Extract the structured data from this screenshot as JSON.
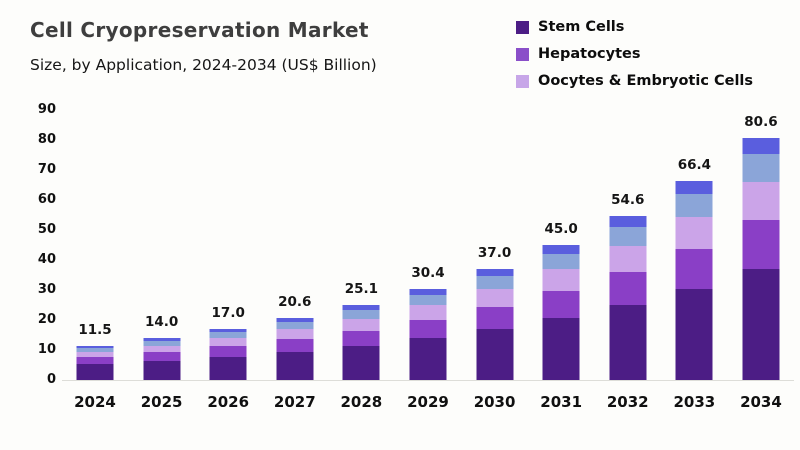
{
  "header": {
    "title": "Cell Cryopreservation Market",
    "subtitle": "Size, by Application, 2024-2034 (US$ Billion)"
  },
  "legend": {
    "items": [
      {
        "label": "Stem Cells",
        "color": "#4c1d85"
      },
      {
        "label": "Hepatocytes",
        "color": "#8a4fc9"
      },
      {
        "label": "Oocytes & Embryotic Cells",
        "color": "#c7a6e8"
      }
    ]
  },
  "chart_data": {
    "type": "stacked-bar",
    "title": "Cell Cryopreservation Market",
    "subtitle": "Size, by Application, 2024-2034 (US$ Billion)",
    "unit": "US$ Billion",
    "categories": [
      "2024",
      "2025",
      "2026",
      "2027",
      "2028",
      "2029",
      "2030",
      "2031",
      "2032",
      "2033",
      "2034"
    ],
    "totals_display": [
      "11.5",
      "14.0",
      "17.0",
      "20.6",
      "25.1",
      "30.4",
      "37.0",
      "45.0",
      "54.6",
      "66.4",
      "80.6"
    ],
    "totals": [
      11.5,
      14.0,
      17.0,
      20.6,
      25.1,
      30.4,
      37.0,
      45.0,
      54.6,
      66.4,
      80.6
    ],
    "series": [
      {
        "label": "Stem Cells",
        "color": "#4c1d85",
        "values": [
          5.3,
          6.4,
          7.8,
          9.5,
          11.5,
          14.0,
          17.0,
          20.7,
          25.1,
          30.5,
          37.1
        ]
      },
      {
        "label": "Hepatocytes",
        "color": "#8a3fc6",
        "values": [
          2.3,
          2.8,
          3.4,
          4.1,
          5.0,
          6.1,
          7.4,
          9.0,
          10.9,
          13.3,
          16.1
        ]
      },
      {
        "label": "Oocytes & Embryotic Cells",
        "color": "#cba4e8",
        "values": [
          1.8,
          2.2,
          2.7,
          3.3,
          4.0,
          4.9,
          5.9,
          7.2,
          8.7,
          10.6,
          12.9
        ]
      },
      {
        "label": null,
        "color": "#8ba5d8",
        "values": [
          1.3,
          1.6,
          2.0,
          2.4,
          2.9,
          3.5,
          4.3,
          5.2,
          6.3,
          7.6,
          9.3
        ]
      },
      {
        "label": null,
        "color": "#5a5ede",
        "values": [
          0.8,
          1.0,
          1.1,
          1.3,
          1.7,
          1.9,
          2.4,
          2.9,
          3.6,
          4.4,
          5.2
        ]
      }
    ],
    "y_axis": {
      "min": 0,
      "max": 90,
      "step": 10,
      "ticks": [
        0,
        10,
        20,
        30,
        40,
        50,
        60,
        70,
        80,
        90
      ]
    },
    "grid": "off",
    "legend_position": "top-right"
  }
}
